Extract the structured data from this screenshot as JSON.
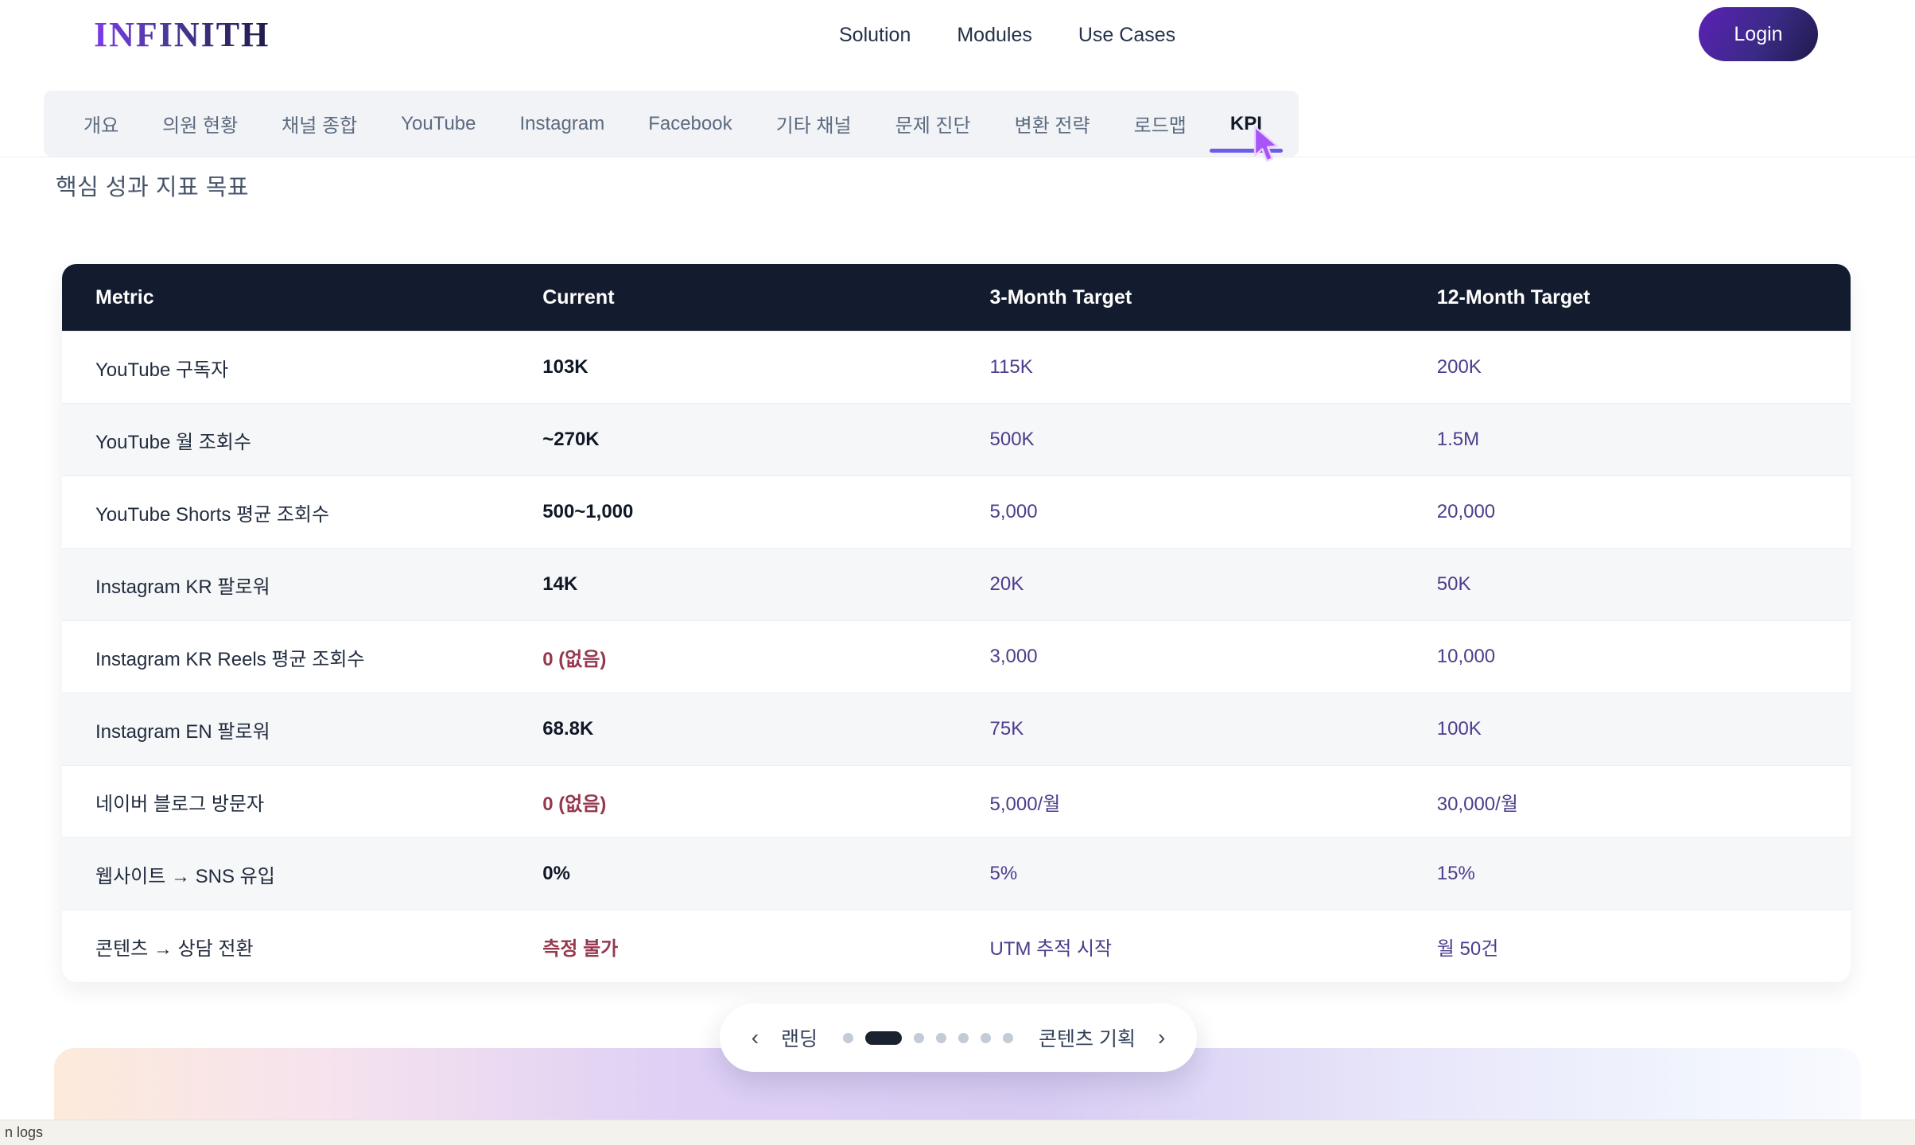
{
  "header": {
    "logo": "INFINITH",
    "nav": [
      {
        "label": "Solution"
      },
      {
        "label": "Modules"
      },
      {
        "label": "Use Cases"
      }
    ],
    "login_label": "Login"
  },
  "tabs": {
    "items": [
      {
        "label": "개요",
        "active": false
      },
      {
        "label": "의원 현황",
        "active": false
      },
      {
        "label": "채널 종합",
        "active": false
      },
      {
        "label": "YouTube",
        "active": false
      },
      {
        "label": "Instagram",
        "active": false
      },
      {
        "label": "Facebook",
        "active": false
      },
      {
        "label": "기타 채널",
        "active": false
      },
      {
        "label": "문제 진단",
        "active": false
      },
      {
        "label": "변환 전략",
        "active": false
      },
      {
        "label": "로드맵",
        "active": false
      },
      {
        "label": "KPI",
        "active": true
      }
    ]
  },
  "page": {
    "section_title": "핵심 성과 지표 목표"
  },
  "kpi_table": {
    "columns": [
      "Metric",
      "Current",
      "3-Month Target",
      "12-Month Target"
    ],
    "rows": [
      {
        "metric": "YouTube 구독자",
        "current": "103K",
        "current_status": "normal",
        "target_3m": "115K",
        "target_12m": "200K"
      },
      {
        "metric": "YouTube 월 조회수",
        "current": "~270K",
        "current_status": "normal",
        "target_3m": "500K",
        "target_12m": "1.5M"
      },
      {
        "metric": "YouTube Shorts 평균 조회수",
        "current": "500~1,000",
        "current_status": "normal",
        "target_3m": "5,000",
        "target_12m": "20,000"
      },
      {
        "metric": "Instagram KR 팔로워",
        "current": "14K",
        "current_status": "normal",
        "target_3m": "20K",
        "target_12m": "50K"
      },
      {
        "metric": "Instagram KR Reels 평균 조회수",
        "current": "0 (없음)",
        "current_status": "bad",
        "target_3m": "3,000",
        "target_12m": "10,000"
      },
      {
        "metric": "Instagram EN 팔로워",
        "current": "68.8K",
        "current_status": "normal",
        "target_3m": "75K",
        "target_12m": "100K"
      },
      {
        "metric": "네이버 블로그 방문자",
        "current": "0 (없음)",
        "current_status": "bad",
        "target_3m": "5,000/월",
        "target_12m": "30,000/월"
      },
      {
        "metric": "웹사이트 → SNS 유입",
        "current": "0%",
        "current_status": "normal",
        "target_3m": "5%",
        "target_12m": "15%"
      },
      {
        "metric": "콘텐츠 → 상담 전환",
        "current": "측정 불가",
        "current_status": "bad",
        "target_3m": "UTM 추적 시작",
        "target_12m": "월 50건"
      }
    ]
  },
  "pager": {
    "prev_label": "랜딩",
    "next_label": "콘텐츠 기획",
    "prev_chevron": "‹",
    "next_chevron": "›",
    "dots": {
      "count": 7,
      "active_index": 1
    }
  },
  "status_bar": {
    "text": "n logs"
  },
  "colors": {
    "accent_underline": "#6c5ce7",
    "table_header_bg": "#131b2e",
    "bad_value": "#96394f",
    "target_value": "#4c3d8c",
    "logo_gradient_start": "#7c3aed",
    "logo_gradient_end": "#1e1b4b",
    "cursor_purple": "#a855f7"
  }
}
